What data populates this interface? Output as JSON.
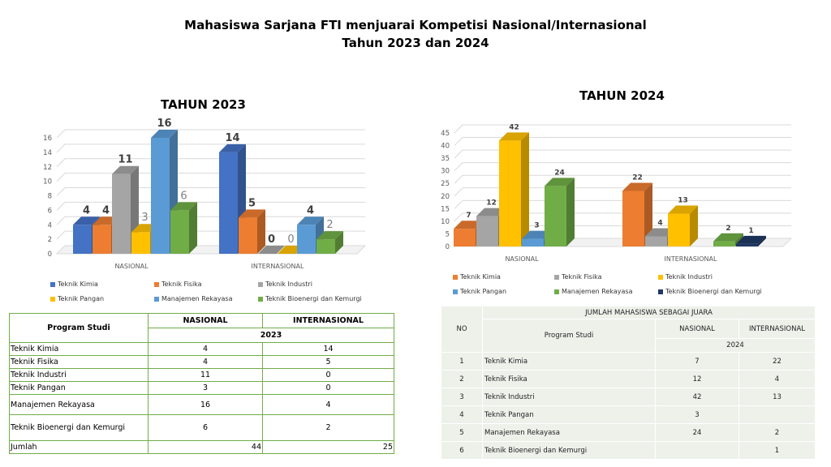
{
  "main_title": {
    "line1": "Mahasiswa Sarjana FTI menjuarai Kompetisi Nasional/Internasional",
    "line2": "Tahun 2023 dan 2024"
  },
  "colors": {
    "Teknik Kimia": "#4472c4",
    "Teknik Fisika": "#ed7d31",
    "Teknik Industri": "#a5a5a5",
    "Teknik Pangan": "#ffc000",
    "Manajemen Rekayasa": "#5b9bd5",
    "Teknik Bioenergi dan Kemurgi": "#70ad47",
    "Teknik Bioenergi dan Kemurgi 2024": "#1f3864"
  },
  "chart_data": [
    {
      "type": "bar",
      "title": "TAHUN 2023",
      "categories": [
        "NASIONAL",
        "INTERNASIONAL"
      ],
      "ylim": [
        0,
        16
      ],
      "yticks": [
        "0",
        "2",
        "4",
        "6",
        "8",
        "10",
        "12",
        "14",
        "16"
      ],
      "grid": true,
      "legend_position": "bottom",
      "series": [
        {
          "name": "Teknik Kimia",
          "values": [
            4,
            14
          ]
        },
        {
          "name": "Teknik Fisika",
          "values": [
            4,
            5
          ]
        },
        {
          "name": "Teknik Industri",
          "values": [
            11,
            0
          ]
        },
        {
          "name": "Teknik Pangan",
          "values": [
            3,
            0
          ]
        },
        {
          "name": "Manajemen Rekayasa",
          "values": [
            16,
            4
          ]
        },
        {
          "name": "Teknik Bioenergi dan Kemurgi",
          "values": [
            6,
            2
          ]
        }
      ]
    },
    {
      "type": "bar",
      "title": "TAHUN 2024",
      "categories": [
        "NASIONAL",
        "INTERNASIONAL"
      ],
      "ylim": [
        0,
        45
      ],
      "yticks": [
        "0",
        "5",
        "10",
        "15",
        "20",
        "25",
        "30",
        "35",
        "40",
        "45"
      ],
      "grid": true,
      "legend_position": "bottom",
      "series": [
        {
          "name": "Teknik Kimia",
          "values": [
            7,
            22
          ]
        },
        {
          "name": "Teknik Fisika",
          "values": [
            12,
            4
          ]
        },
        {
          "name": "Teknik Industri",
          "values": [
            42,
            13
          ]
        },
        {
          "name": "Teknik Pangan",
          "values": [
            3,
            null
          ]
        },
        {
          "name": "Manajemen Rekayasa",
          "values": [
            24,
            2
          ]
        },
        {
          "name": "Teknik Bioenergi dan Kemurgi",
          "values": [
            null,
            1
          ]
        }
      ]
    }
  ],
  "table_2023": {
    "headers": {
      "program": "Program Studi",
      "nasional": "NASIONAL",
      "internasional": "INTERNASIONAL",
      "year": "2023"
    },
    "rows": [
      {
        "program": "Teknik Kimia",
        "nasional": "4",
        "internasional": "14"
      },
      {
        "program": "Teknik Fisika",
        "nasional": "4",
        "internasional": "5"
      },
      {
        "program": "Teknik Industri",
        "nasional": "11",
        "internasional": "0"
      },
      {
        "program": "Teknik Pangan",
        "nasional": "3",
        "internasional": "0"
      },
      {
        "program": "Manajemen Rekayasa",
        "nasional": "16",
        "internasional": "4"
      },
      {
        "program": "Teknik Bioenergi dan Kemurgi",
        "nasional": "6",
        "internasional": "2"
      }
    ],
    "total": {
      "label": "Jumlah",
      "nasional": "44",
      "internasional": "25"
    }
  },
  "table_2024": {
    "headers": {
      "title": "JUMLAH MAHASISWA SEBAGAI JUARA",
      "no": "NO",
      "program": "Program Studi",
      "nasional": "NASIONAL",
      "internasional": "INTERNASIONAL",
      "year": "2024"
    },
    "rows": [
      {
        "no": "1",
        "program": "Teknik Kimia",
        "nasional": "7",
        "internasional": "22"
      },
      {
        "no": "2",
        "program": "Teknik Fisika",
        "nasional": "12",
        "internasional": "4"
      },
      {
        "no": "3",
        "program": "Teknik Industri",
        "nasional": "42",
        "internasional": "13"
      },
      {
        "no": "4",
        "program": "Teknik Pangan",
        "nasional": "3",
        "internasional": ""
      },
      {
        "no": "5",
        "program": "Manajemen Rekayasa",
        "nasional": "24",
        "internasional": "2"
      },
      {
        "no": "6",
        "program": "Teknik Bioenergi dan Kemurgi",
        "nasional": "",
        "internasional": "1"
      }
    ]
  }
}
